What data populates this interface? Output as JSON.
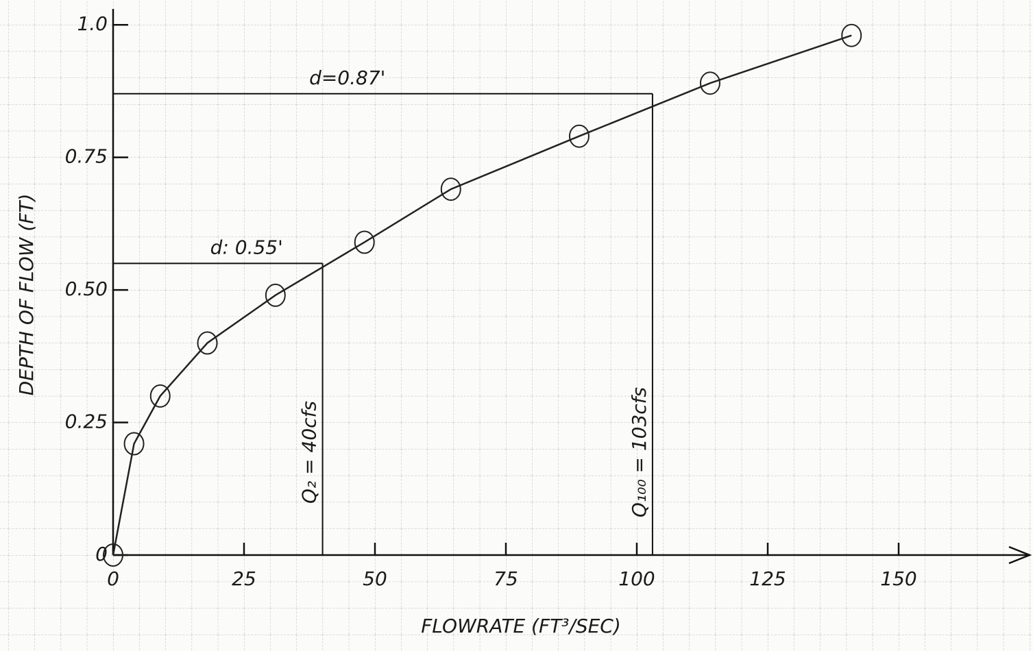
{
  "chart_data": {
    "type": "line",
    "x_label": "FLOWRATE (FT³/SEC)",
    "y_label": "DEPTH OF FLOW (FT)",
    "x": [
      0,
      4,
      9,
      18,
      31,
      48,
      64.5,
      89,
      114,
      141
    ],
    "series": [
      {
        "color": "#222222",
        "values": [
          0,
          0.21,
          0.3,
          0.4,
          0.49,
          0.59,
          0.69,
          0.79,
          0.89,
          0.98
        ]
      }
    ],
    "xlim": [
      0,
      175
    ],
    "ylim": [
      0,
      1.03
    ],
    "xticks": [
      0,
      25,
      50,
      75,
      100,
      125,
      150
    ],
    "yticks": [
      0,
      {
        "value": 0.25,
        "label": "0.25"
      },
      {
        "value": 0.5,
        "label": "0.50"
      },
      0.75,
      {
        "value": 1,
        "label": "1.0"
      }
    ],
    "grid": true,
    "guides": [
      {
        "x": 40,
        "y": 0.55,
        "x_label": "Q₂ = 40cfs",
        "y_label": "d: 0.55'"
      },
      {
        "x": 103,
        "y": 0.87,
        "x_label": "Q₁₀₀ = 103cfs",
        "y_label": "d=0.87'"
      }
    ]
  }
}
